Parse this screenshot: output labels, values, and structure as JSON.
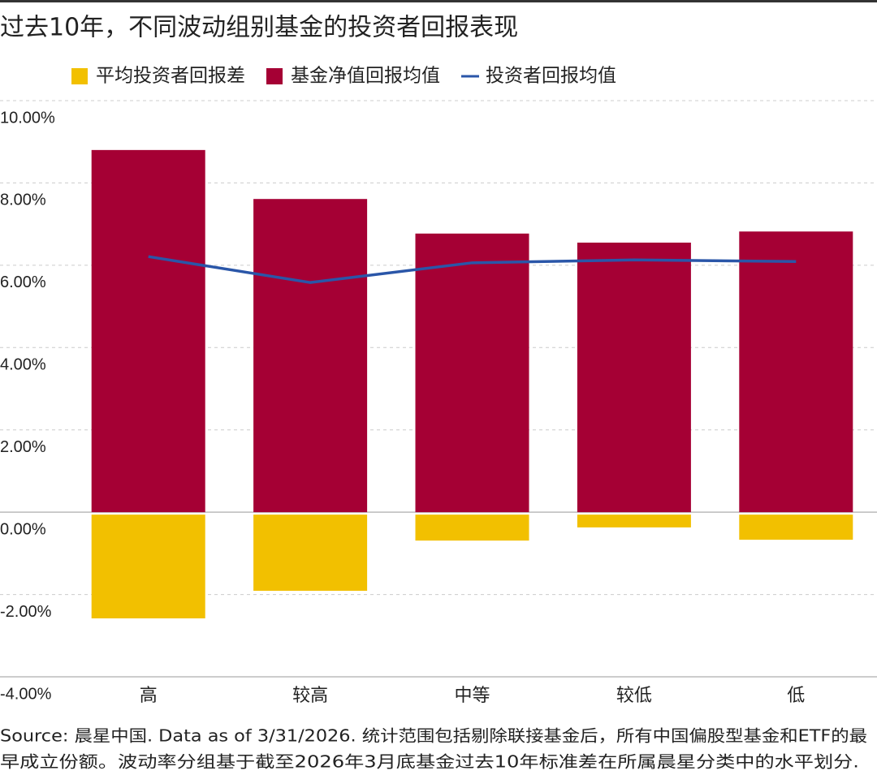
{
  "chart_data": {
    "type": "bar",
    "title": "过去10年，不同波动组别基金的投资者回报表现",
    "categories": [
      "高",
      "较高",
      "中等",
      "较低",
      "低"
    ],
    "series": [
      {
        "name": "平均投资者回报差",
        "color": "#f2c000",
        "type": "bar",
        "values": [
          -2.58,
          -1.91,
          -0.69,
          -0.37,
          -0.67
        ]
      },
      {
        "name": "基金净值回报均值",
        "color": "#a50034",
        "type": "bar",
        "values": [
          8.8,
          7.61,
          6.77,
          6.55,
          6.82
        ]
      },
      {
        "name": "投资者回报均值",
        "color": "#2a56a8",
        "type": "line",
        "values": [
          6.21,
          5.58,
          6.06,
          6.13,
          6.09
        ]
      }
    ],
    "ylim": [
      -4,
      10
    ],
    "yticks": [
      {
        "value": -4,
        "label": "-4.00%"
      },
      {
        "value": -2,
        "label": "-2.00%"
      },
      {
        "value": 0,
        "label": "0.00%"
      },
      {
        "value": 2,
        "label": "2.00%"
      },
      {
        "value": 4,
        "label": "4.00%"
      },
      {
        "value": 6,
        "label": "6.00%"
      },
      {
        "value": 8,
        "label": "8.00%"
      },
      {
        "value": 10,
        "label": "10.00%"
      }
    ],
    "grid": true,
    "legend": "top",
    "source": [
      "Source: 晨星中国. Data as of 3/31/2026. 统计范围包括剔除联接基金后，所有中国偏股型基金和ETF的最",
      "早成立份额。波动率分组基于截至2026年3月底基金过去10年标准差在所属晨星分类中的水平划分."
    ]
  }
}
